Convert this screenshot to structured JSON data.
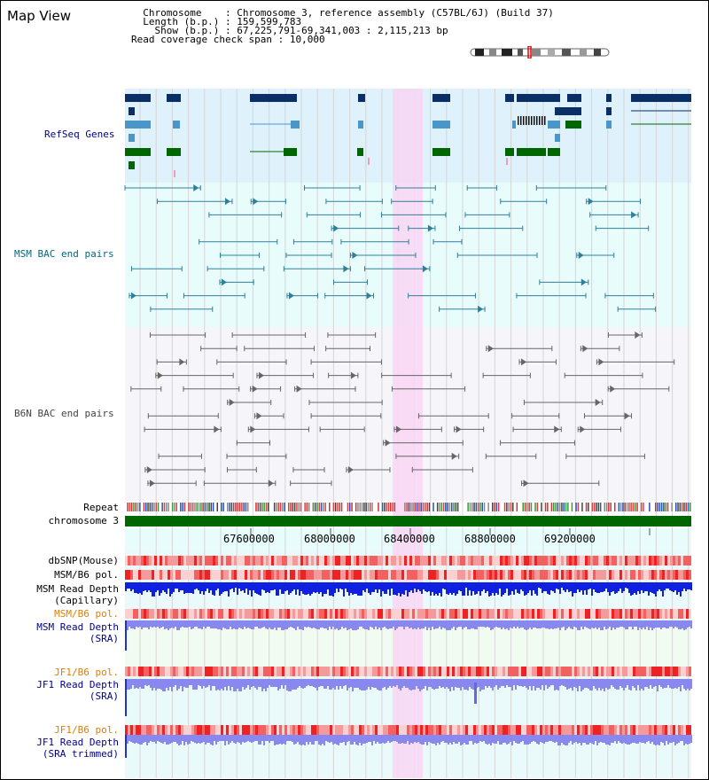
{
  "title": "Map View",
  "info": {
    "chromosome_key": "Chromosome",
    "chromosome_value": "Chromosome 3, reference assembly (C57BL/6J) (Build 37)",
    "length_key": "Length (b.p.)",
    "length_value": "159,599,783",
    "show_key": "Show (b.p.)",
    "show_value": "67,225,791-69,341,003 : 2,115,213 bp",
    "span_key": "Read coverage check span",
    "span_value": "10,000"
  },
  "tracks": {
    "refseq": "RefSeq Genes",
    "msm_bac": "MSM BAC end pairs",
    "b6n_bac": "B6N BAC end pairs",
    "repeat": "Repeat",
    "chromosome": "chromosome 3",
    "dbsnp": "dbSNP(Mouse)",
    "msm_b6_pol_1": "MSM/B6 pol.",
    "msm_depth_cap_1": "MSM Read Depth",
    "msm_depth_cap_2": "(Capillary)",
    "msm_b6_pol_2": "MSM/B6 pol.",
    "msm_depth_sra_1": "MSM Read Depth",
    "msm_depth_sra_2": "(SRA)",
    "jf1_b6_pol_1": "JF1/B6 pol.",
    "jf1_depth_sra_1": "JF1 Read Depth",
    "jf1_depth_sra_2": "(SRA)",
    "jf1_b6_pol_2": "JF1/B6 pol.",
    "jf1_depth_trim_1": "JF1 Read Depth",
    "jf1_depth_trim_2": "(SRA trimmed)"
  },
  "axis": {
    "ticks": [
      "67600000",
      "68000000",
      "68400000",
      "68800000",
      "69200000"
    ]
  },
  "colors": {
    "refseq_bg": "#dff1fb",
    "msm_bg": "#e8fcfc",
    "b6n_bg": "#f5f5fa",
    "highlight": "#f9d6f4",
    "gene_dark": "#0a2e66",
    "gene_mid": "#4a96c8",
    "gene_green": "#006600",
    "chromosome_bar": "#006600",
    "depth_capillary": "#1020e0",
    "depth_sra": "#8888ee"
  }
}
